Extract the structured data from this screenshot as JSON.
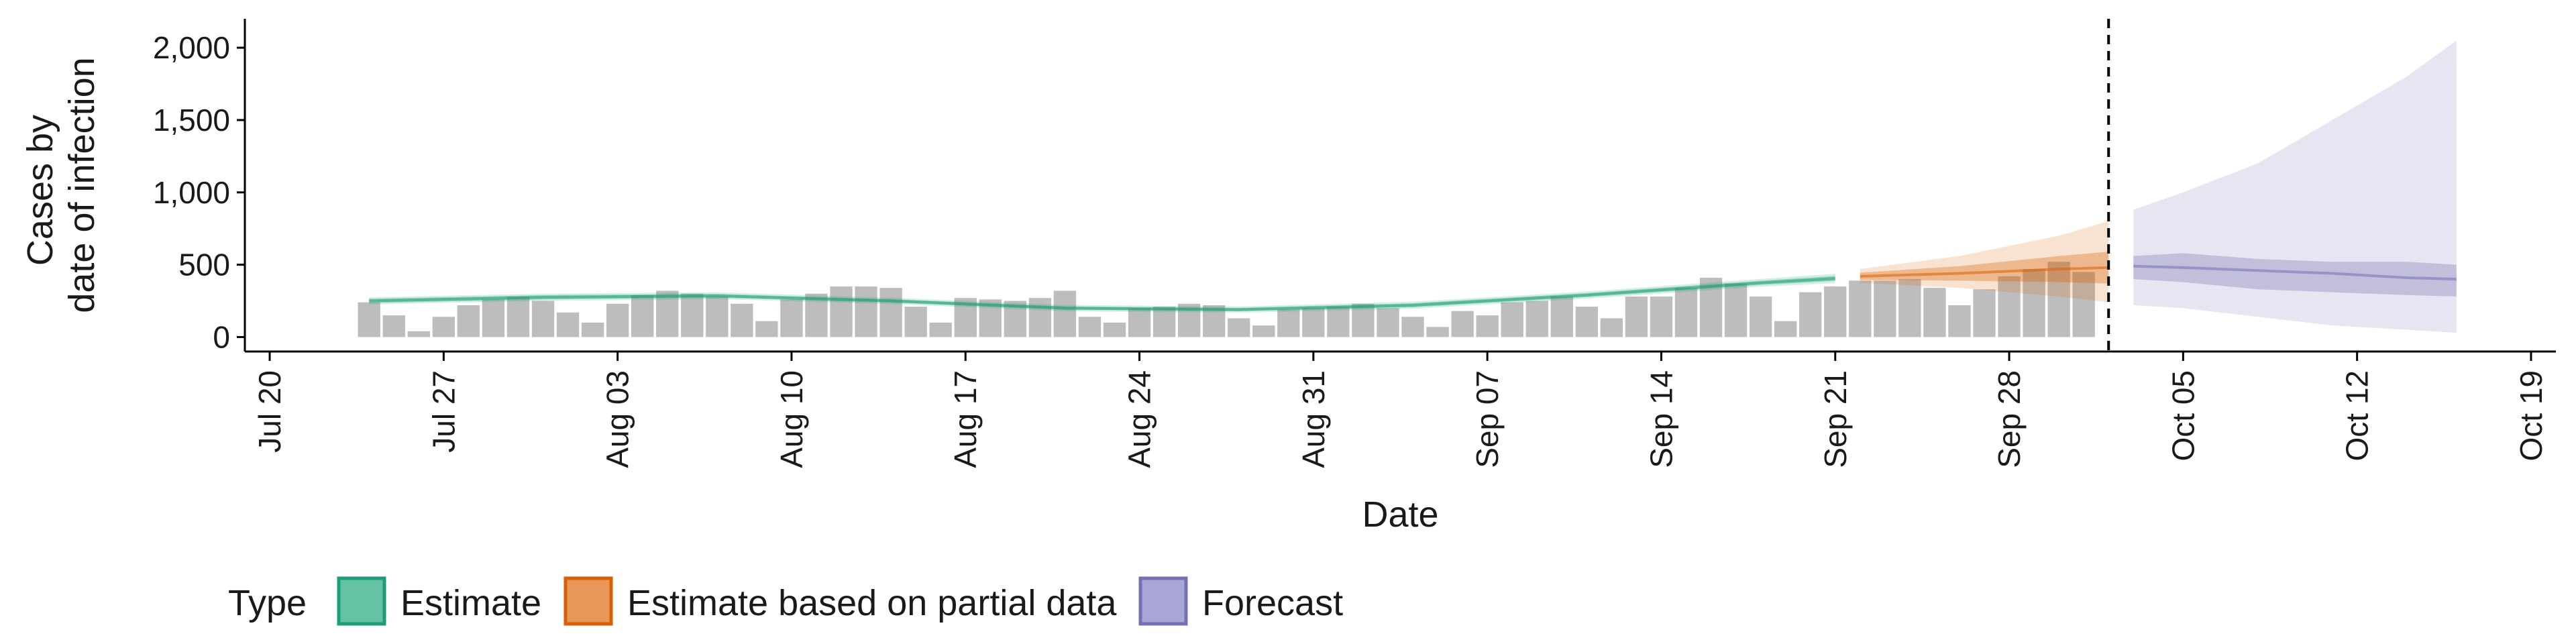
{
  "chart_data": {
    "type": "bar",
    "xlabel": "Date",
    "ylabel_lines": [
      "Cases by",
      "date of infection"
    ],
    "y_ticks": [
      0,
      500,
      1000,
      1500,
      2000
    ],
    "y_tick_labels": [
      "0",
      "500",
      "1,000",
      "1,500",
      "2,000"
    ],
    "ylim": [
      -100,
      2200
    ],
    "x_range": [
      "2020-07-19",
      "2020-10-20"
    ],
    "x_ticks": [
      "2020-07-20",
      "2020-07-27",
      "2020-08-03",
      "2020-08-10",
      "2020-08-17",
      "2020-08-24",
      "2020-08-31",
      "2020-09-07",
      "2020-09-14",
      "2020-09-21",
      "2020-09-28",
      "2020-10-05",
      "2020-10-12",
      "2020-10-19"
    ],
    "x_tick_labels": [
      "Jul 20",
      "Jul 27",
      "Aug 03",
      "Aug 10",
      "Aug 17",
      "Aug 24",
      "Aug 31",
      "Sep 07",
      "Sep 14",
      "Sep 21",
      "Sep 28",
      "Oct 05",
      "Oct 12",
      "Oct 19"
    ],
    "report_date": "2020-10-02",
    "bars": {
      "color": "#bdbdbd",
      "start_date": "2020-07-24",
      "values": [
        240,
        150,
        40,
        140,
        220,
        260,
        280,
        250,
        170,
        100,
        230,
        290,
        320,
        300,
        280,
        230,
        110,
        260,
        300,
        350,
        350,
        340,
        210,
        100,
        270,
        260,
        250,
        270,
        320,
        140,
        100,
        200,
        210,
        230,
        220,
        130,
        80,
        190,
        200,
        210,
        230,
        200,
        140,
        70,
        180,
        150,
        240,
        250,
        280,
        210,
        130,
        280,
        280,
        340,
        410,
        370,
        280,
        110,
        310,
        350,
        390,
        390,
        400,
        340,
        220,
        330,
        420,
        470,
        520,
        450
      ]
    },
    "series": [
      {
        "name": "Estimate",
        "color": "#1b9e77",
        "dates": [
          "2020-07-24",
          "2020-07-31",
          "2020-08-07",
          "2020-08-14",
          "2020-08-21",
          "2020-08-28",
          "2020-09-04",
          "2020-09-11",
          "2020-09-18",
          "2020-09-21"
        ],
        "median": [
          250,
          275,
          285,
          250,
          200,
          190,
          220,
          290,
          375,
          405
        ],
        "inner_low": [
          235,
          260,
          272,
          238,
          188,
          178,
          206,
          276,
          360,
          388
        ],
        "inner_high": [
          265,
          290,
          298,
          262,
          212,
          202,
          234,
          304,
          390,
          422
        ],
        "outer_low": [
          225,
          250,
          262,
          228,
          178,
          168,
          195,
          265,
          348,
          372
        ],
        "outer_high": [
          275,
          300,
          310,
          272,
          222,
          212,
          245,
          315,
          402,
          438
        ]
      },
      {
        "name": "Estimate based on partial data",
        "color": "#d95f02",
        "dates": [
          "2020-09-22",
          "2020-09-26",
          "2020-09-30",
          "2020-10-02"
        ],
        "median": [
          420,
          440,
          470,
          480
        ],
        "inner_low": [
          395,
          390,
          380,
          370
        ],
        "inner_high": [
          445,
          490,
          560,
          590
        ],
        "outer_low": [
          375,
          340,
          280,
          240
        ],
        "outer_high": [
          470,
          560,
          700,
          800
        ]
      },
      {
        "name": "Forecast",
        "color": "#7570b3",
        "dates": [
          "2020-10-03",
          "2020-10-05",
          "2020-10-08",
          "2020-10-11",
          "2020-10-14",
          "2020-10-16"
        ],
        "median": [
          490,
          480,
          460,
          440,
          410,
          400
        ],
        "inner_low": [
          400,
          380,
          330,
          310,
          290,
          280
        ],
        "inner_high": [
          560,
          580,
          540,
          520,
          520,
          500
        ],
        "outer_low": [
          220,
          200,
          140,
          80,
          50,
          30
        ],
        "outer_high": [
          880,
          1000,
          1200,
          1500,
          1800,
          2050
        ]
      }
    ],
    "legend": {
      "title": "Type",
      "position": "bottom",
      "items": [
        {
          "label": "Estimate",
          "fill": "#66c2a5",
          "stroke": "#1b9e77"
        },
        {
          "label": "Estimate based on partial data",
          "fill": "#e8975a",
          "stroke": "#d95f02"
        },
        {
          "label": "Forecast",
          "fill": "#a8a6d4",
          "stroke": "#7570b3"
        }
      ]
    },
    "grid": false
  }
}
